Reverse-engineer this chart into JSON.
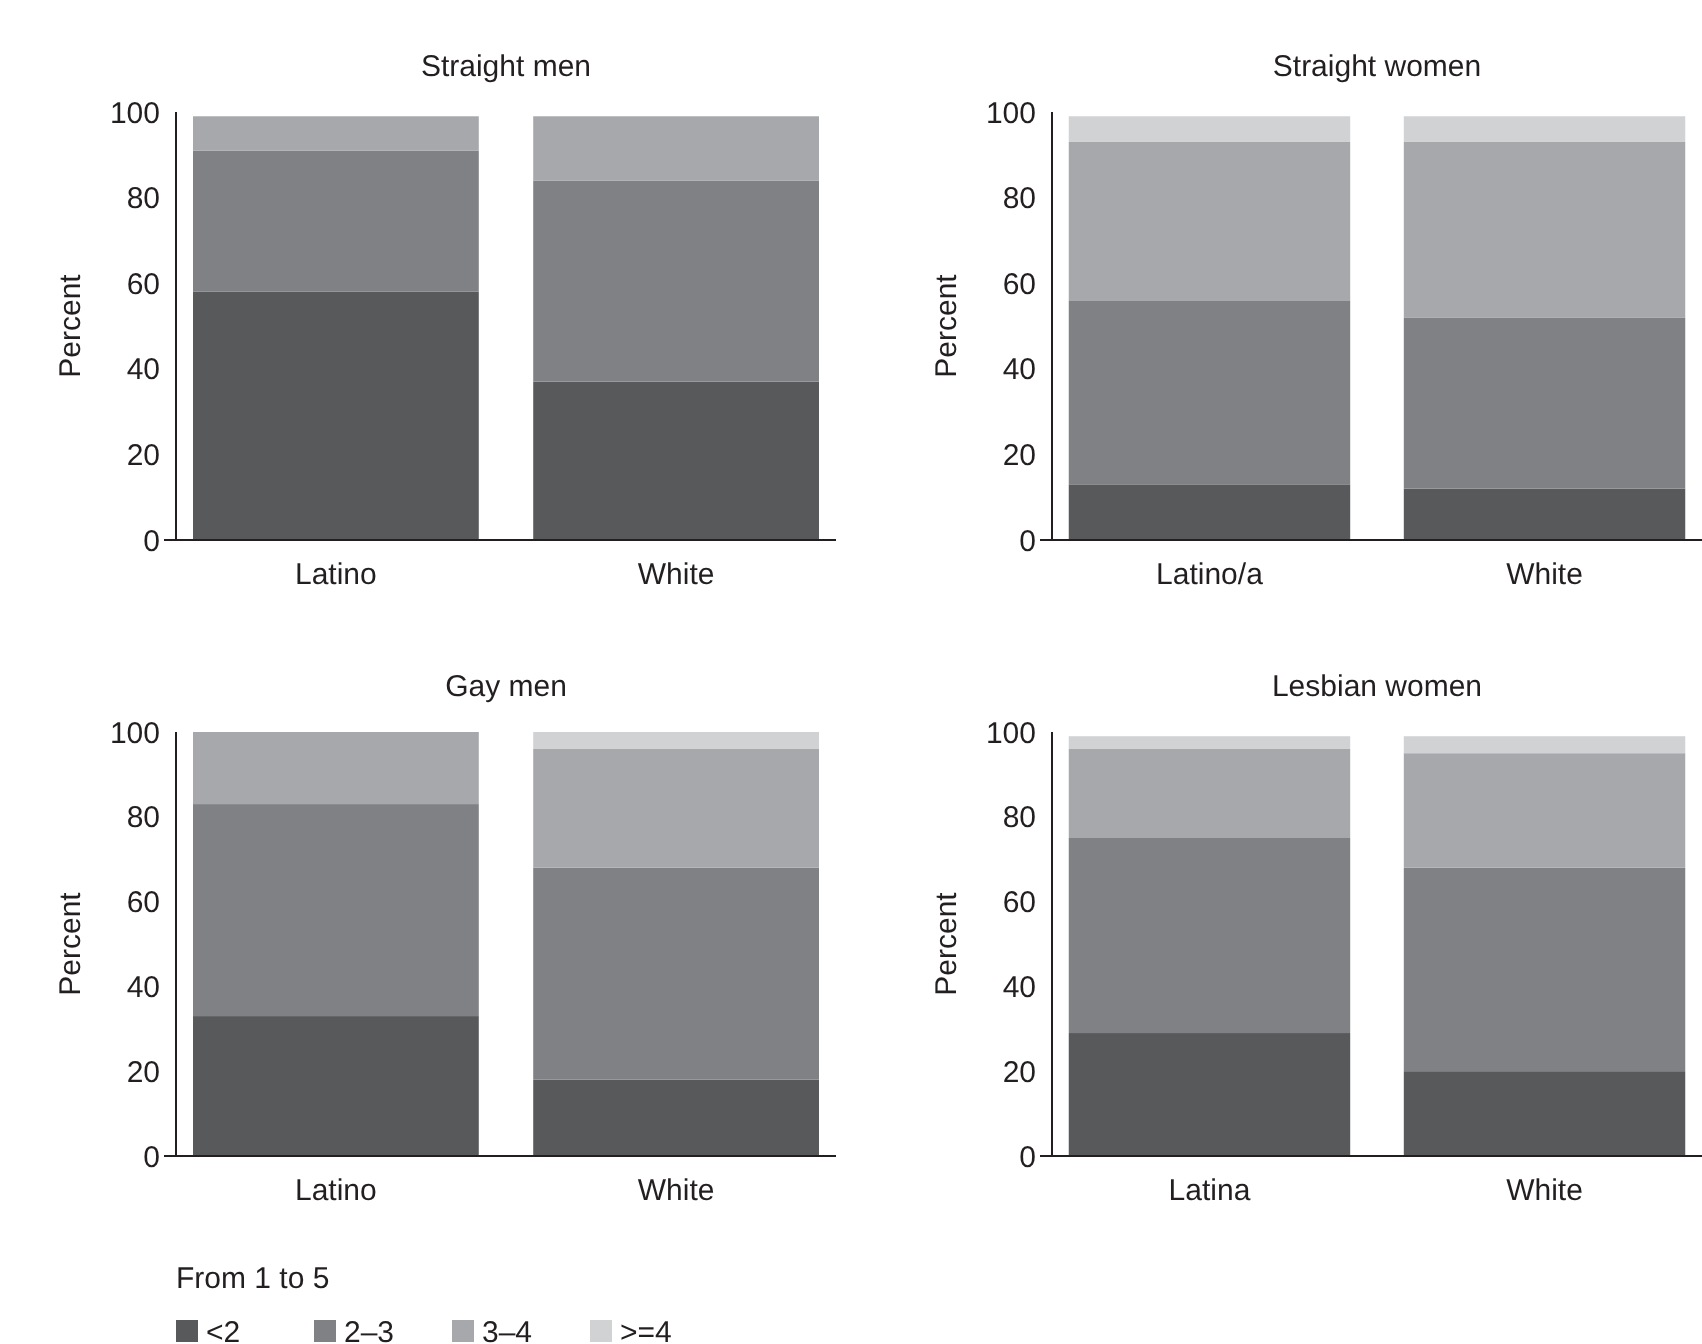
{
  "chart_data": [
    {
      "type": "bar",
      "stacked": true,
      "title": "Straight men",
      "ylabel": "Percent",
      "categories": [
        "Latino",
        "White"
      ],
      "ylim": [
        0,
        100
      ],
      "yticks": [
        0,
        20,
        40,
        60,
        80,
        100
      ],
      "legend": false,
      "series": [
        {
          "color": "#58595b",
          "values": [
            58,
            37
          ]
        },
        {
          "color": "#808184",
          "values": [
            33,
            47
          ]
        },
        {
          "color": "#a7a8ab",
          "values": [
            8,
            15
          ]
        },
        {
          "color": "#d1d2d4",
          "values": [
            0,
            0
          ]
        }
      ]
    },
    {
      "type": "bar",
      "stacked": true,
      "title": "Straight women",
      "ylabel": "Percent",
      "categories": [
        "Latino/a",
        "White"
      ],
      "ylim": [
        0,
        100
      ],
      "yticks": [
        0,
        20,
        40,
        60,
        80,
        100
      ],
      "legend": false,
      "series": [
        {
          "color": "#58595b",
          "values": [
            13,
            12
          ]
        },
        {
          "color": "#808184",
          "values": [
            43,
            40
          ]
        },
        {
          "color": "#a7a8ab",
          "values": [
            37,
            41
          ]
        },
        {
          "color": "#d1d2d4",
          "values": [
            6,
            6
          ]
        }
      ]
    },
    {
      "type": "bar",
      "stacked": true,
      "title": "Gay men",
      "ylabel": "Percent",
      "categories": [
        "Latino",
        "White"
      ],
      "ylim": [
        0,
        100
      ],
      "yticks": [
        0,
        20,
        40,
        60,
        80,
        100
      ],
      "legend": "bottom",
      "legend_title": "From 1 to 5",
      "series": [
        {
          "name": "<2",
          "color": "#58595b",
          "values": [
            33,
            18
          ]
        },
        {
          "name": "2–3",
          "color": "#808184",
          "values": [
            50,
            50
          ]
        },
        {
          "name": "3–4",
          "color": "#a7a8ab",
          "values": [
            17,
            28
          ]
        },
        {
          "name": ">=4",
          "color": "#d1d2d4",
          "values": [
            0,
            4
          ]
        }
      ]
    },
    {
      "type": "bar",
      "stacked": true,
      "title": "Lesbian women",
      "ylabel": "Percent",
      "categories": [
        "Latina",
        "White"
      ],
      "ylim": [
        0,
        100
      ],
      "yticks": [
        0,
        20,
        40,
        60,
        80,
        100
      ],
      "legend": false,
      "series": [
        {
          "color": "#58595b",
          "values": [
            29,
            20
          ]
        },
        {
          "color": "#808184",
          "values": [
            46,
            48
          ]
        },
        {
          "color": "#a7a8ab",
          "values": [
            21,
            27
          ]
        },
        {
          "color": "#d1d2d4",
          "values": [
            3,
            4
          ]
        }
      ]
    }
  ]
}
